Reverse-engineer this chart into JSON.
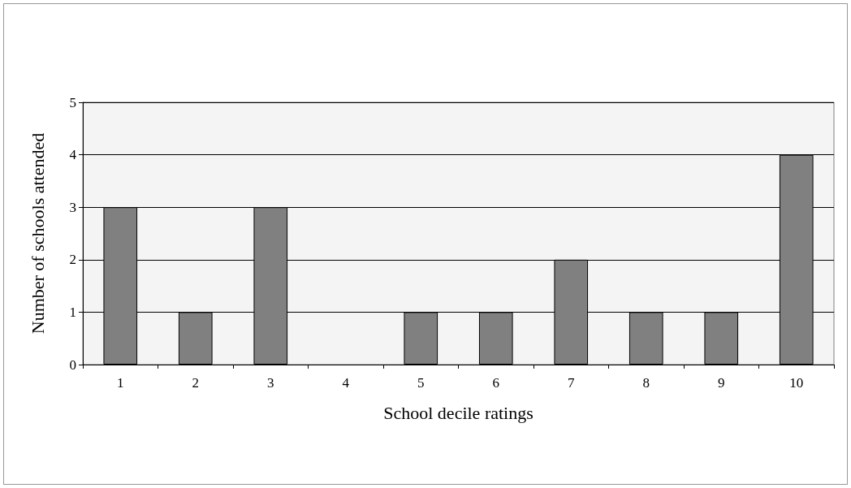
{
  "chart_data": {
    "type": "bar",
    "xlabel": "School decile ratings",
    "ylabel": "Number of schools attended",
    "categories": [
      "1",
      "2",
      "3",
      "4",
      "5",
      "6",
      "7",
      "8",
      "9",
      "10"
    ],
    "values": [
      3,
      1,
      3,
      0,
      1,
      1,
      2,
      1,
      1,
      4
    ],
    "color": "#808080",
    "ylim": [
      0,
      5
    ],
    "yticks": [
      0,
      1,
      2,
      3,
      4,
      5
    ],
    "grid": "y"
  }
}
